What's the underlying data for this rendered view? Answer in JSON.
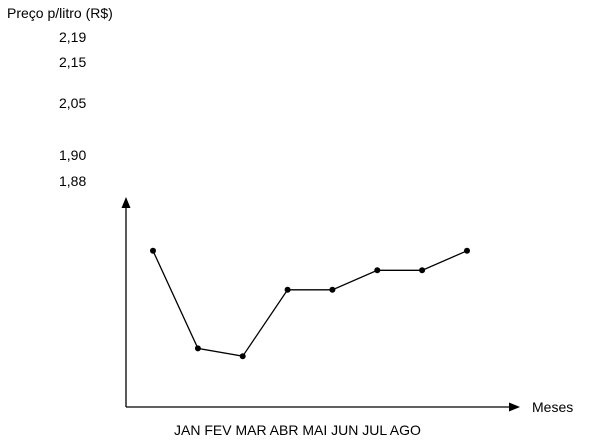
{
  "chart_data": {
    "type": "line",
    "ylabel": "Preço p/litro (R$)",
    "xlabel": "Meses",
    "ytick_labels": [
      "2,19",
      "2,15",
      "2,05",
      "1,90",
      "1,88"
    ],
    "categories_label": "JAN FEV MAR ABR MAI JUN JUL AGO",
    "categories": [
      "JAN",
      "FEV",
      "MAR",
      "ABR",
      "MAI",
      "JUN",
      "JUL",
      "AGO"
    ],
    "values": [
      2.15,
      1.9,
      1.88,
      2.05,
      2.05,
      2.1,
      2.1,
      2.15
    ],
    "ylim": [
      1.75,
      2.28
    ],
    "grid": false,
    "colors": {
      "line": "#000000",
      "marker": "#000000",
      "axis": "#000000"
    }
  }
}
